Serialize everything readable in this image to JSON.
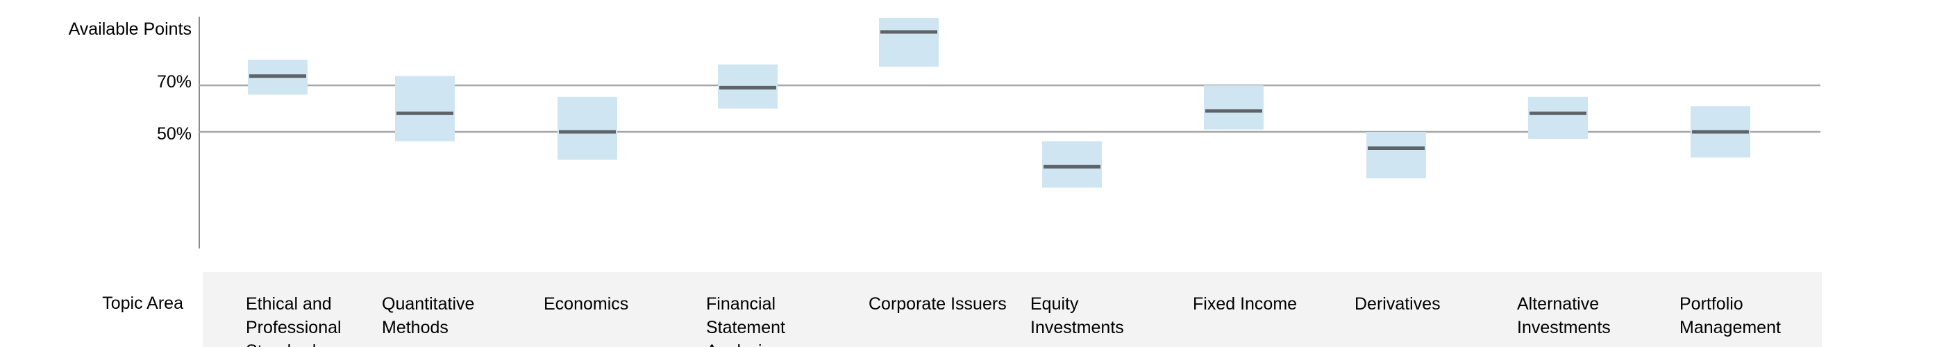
{
  "labels": {
    "y_title": "Available Points",
    "tick_70": "70%",
    "tick_50": "50%",
    "topic_area": "Topic Area"
  },
  "chart_data": {
    "type": "range",
    "title": "",
    "ylabel": "Available Points",
    "xlabel": "Topic Area",
    "y_ticks": [
      {
        "value": 70,
        "label": "70%"
      },
      {
        "value": 50,
        "label": "50%"
      }
    ],
    "reference_lines": [
      70,
      50
    ],
    "colors": {
      "band": "#cfe5f2",
      "mean_line": "#5e6367",
      "reference_line": "#a6a6a6",
      "axis": "#8c8c8c",
      "topic_band": "#f3f3f3"
    },
    "categories": [
      "Ethical and Professional Standards",
      "Quantitative Methods",
      "Economics",
      "Financial Statement Analysis",
      "Corporate Issuers",
      "Equity Investments",
      "Fixed Income",
      "Derivatives",
      "Alternative Investments",
      "Portfolio Management"
    ],
    "series": [
      {
        "low": [
          66,
          46,
          38,
          60,
          78,
          26,
          51,
          30,
          47,
          39
        ],
        "mean": [
          74,
          58,
          50,
          69,
          93,
          35,
          59,
          43,
          58,
          50
        ],
        "high": [
          81,
          74,
          65,
          79,
          99,
          46,
          70,
          50,
          65,
          61
        ]
      }
    ]
  }
}
